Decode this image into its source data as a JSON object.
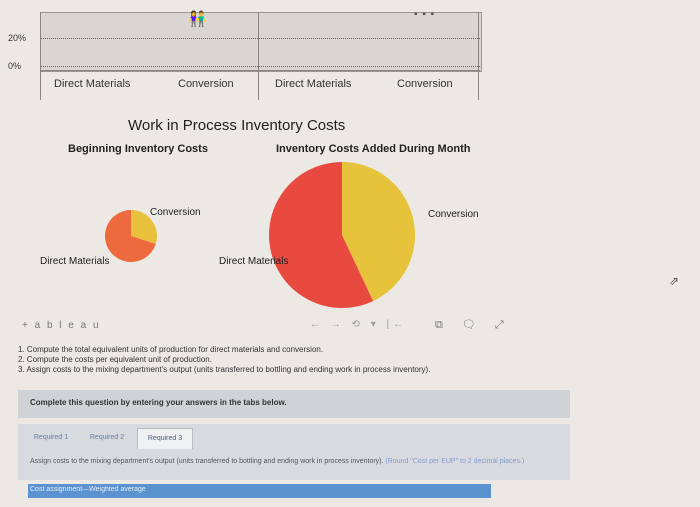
{
  "bar_chart": {
    "y_ticks": [
      "20%",
      "0%"
    ],
    "categories": [
      "Direct Materials",
      "Conversion",
      "Direct Materials",
      "Conversion"
    ],
    "header_icon": "people-icon",
    "overflow_icon": "more-dots-icon"
  },
  "title": "Work in Process Inventory Costs",
  "subtitles": {
    "left": "Beginning Inventory Costs",
    "right": "Inventory Costs Added During Month"
  },
  "chart_data": [
    {
      "type": "pie",
      "title": "Beginning Inventory Costs",
      "labels": [
        "Conversion",
        "Direct Materials"
      ],
      "values": [
        30,
        70
      ],
      "colors": [
        "#e9c03c",
        "#ec6a3d"
      ]
    },
    {
      "type": "pie",
      "title": "Inventory Costs Added During Month",
      "labels": [
        "Conversion",
        "Direct Materials"
      ],
      "values": [
        43,
        57
      ],
      "colors": [
        "#e6c33a",
        "#e84a40"
      ]
    }
  ],
  "tableau": {
    "logo_text": "+ a b l e a u",
    "nav_glyphs": "← → ⟲ ▾ |←",
    "icons": "⧉ 🗨 ⤢"
  },
  "instructions": [
    "1. Compute the total equivalent units of production for direct materials and conversion.",
    "2. Compute the costs per equivalent unit of production.",
    "3. Assign costs to the mixing department's output (units transferred to bottling and ending work in process inventory)."
  ],
  "complete_prompt": "Complete this question by entering your answers in the tabs below.",
  "tabs": [
    {
      "label": "Required 1"
    },
    {
      "label": "Required 2"
    },
    {
      "label": "Required 3"
    }
  ],
  "assign_text": "Assign costs to the mixing department's output (units transferred to bottling and ending work in process inventory).",
  "assign_note": "(Round \"Cost per EUP\" to 2 decimal places.)",
  "cost_bar_label": "Cost assignment—Weighted average"
}
